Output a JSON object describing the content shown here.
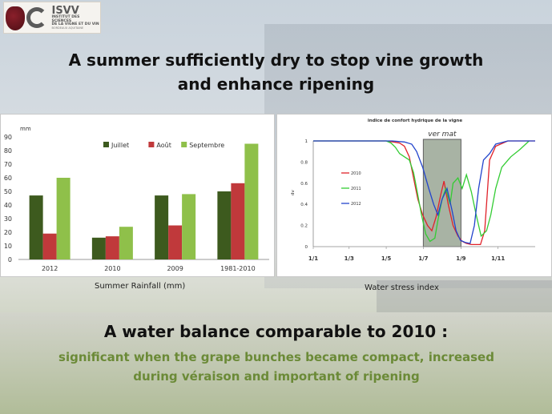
{
  "logo": {
    "name": "ISVV",
    "line1": "INSTITUT DES SCIENCES",
    "line2": "DE LA VIGNE ET DU VIN",
    "line3": "BORDEAUX AQUITAINE"
  },
  "title": {
    "line1": "A summer sufficiently dry to stop vine growth",
    "line2": "and enhance ripening"
  },
  "left_caption": "Summer Rainfall (mm)",
  "right_caption": "Water stress index",
  "conclusion": {
    "heading": "A water balance comparable to 2010  :",
    "body_line1": "significant when the grape bunches became compact, increased",
    "body_line2": "during véraison and important of ripening"
  },
  "chart_data": [
    {
      "type": "bar",
      "ylabel": "mm",
      "ylim": [
        0,
        90
      ],
      "yticks": [
        0,
        10,
        20,
        30,
        40,
        50,
        60,
        70,
        80,
        90
      ],
      "categories": [
        "2012",
        "2010",
        "2009",
        "1981-2010"
      ],
      "series": [
        {
          "name": "Juillet",
          "color": "#3d5a1e",
          "values": [
            47,
            16,
            47,
            50
          ]
        },
        {
          "name": "Août",
          "color": "#c0393b",
          "values": [
            19,
            17,
            25,
            56
          ]
        },
        {
          "name": "Septembre",
          "color": "#8fc04a",
          "values": [
            60,
            24,
            48,
            85
          ]
        }
      ],
      "legend": "top"
    },
    {
      "type": "line",
      "title": "indice de confort hydrique de la vigne",
      "ylabel": "dv",
      "ylim": [
        0,
        1
      ],
      "yticks": [
        "0",
        "0.2",
        "0.4",
        "0.6",
        "0.8",
        "1"
      ],
      "xticks": [
        "1/1",
        "1/3",
        "1/5",
        "1/7",
        "1/9",
        "1/11"
      ],
      "annotation": "ver mat",
      "shaded_region": [
        "1/7",
        "1/9"
      ],
      "legend": "left",
      "series": [
        {
          "name": "2010",
          "color": "#e0222a",
          "x": [
            0,
            100,
            120,
            132,
            142,
            150,
            158,
            165,
            172,
            180,
            188,
            195,
            202,
            210,
            215,
            222,
            230,
            238,
            245,
            252,
            260,
            268,
            275,
            282,
            290,
            300,
            320,
            365
          ],
          "y": [
            1,
            1,
            1,
            0.99,
            0.98,
            0.95,
            0.85,
            0.65,
            0.45,
            0.3,
            0.2,
            0.15,
            0.28,
            0.5,
            0.62,
            0.4,
            0.2,
            0.1,
            0.05,
            0.03,
            0.02,
            0.02,
            0.02,
            0.15,
            0.82,
            0.95,
            1,
            1
          ]
        },
        {
          "name": "2011",
          "color": "#33cc33",
          "x": [
            0,
            100,
            120,
            128,
            135,
            142,
            150,
            158,
            165,
            170,
            178,
            185,
            192,
            200,
            205,
            212,
            218,
            225,
            230,
            238,
            245,
            252,
            260,
            268,
            276,
            285,
            292,
            300,
            310,
            325,
            340,
            355
          ],
          "y": [
            1,
            1,
            1,
            0.98,
            0.94,
            0.88,
            0.85,
            0.82,
            0.7,
            0.55,
            0.3,
            0.12,
            0.05,
            0.08,
            0.25,
            0.45,
            0.55,
            0.4,
            0.6,
            0.65,
            0.55,
            0.68,
            0.52,
            0.3,
            0.1,
            0.15,
            0.3,
            0.55,
            0.75,
            0.85,
            0.92,
            1
          ]
        },
        {
          "name": "2012",
          "color": "#2244cc",
          "x": [
            0,
            100,
            130,
            150,
            162,
            170,
            180,
            190,
            198,
            205,
            212,
            220,
            228,
            235,
            242,
            250,
            258,
            265,
            272,
            280,
            290,
            300,
            320,
            365
          ],
          "y": [
            1,
            1,
            1,
            0.99,
            0.97,
            0.9,
            0.75,
            0.55,
            0.4,
            0.3,
            0.45,
            0.55,
            0.35,
            0.15,
            0.06,
            0.04,
            0.03,
            0.2,
            0.55,
            0.82,
            0.88,
            0.97,
            1,
            1
          ]
        }
      ]
    }
  ]
}
